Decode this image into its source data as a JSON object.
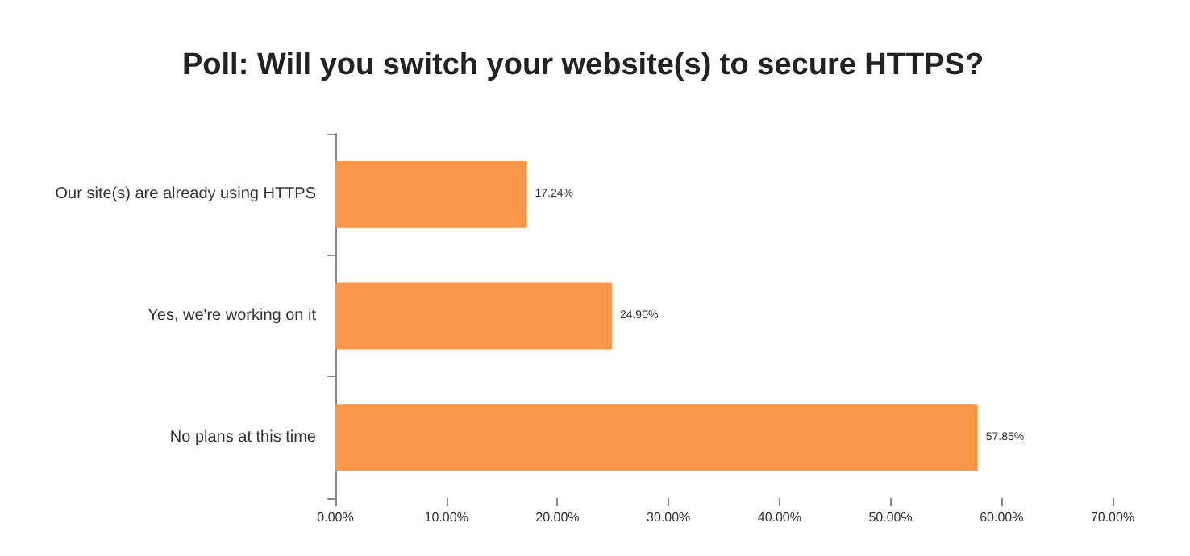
{
  "chart_data": {
    "type": "bar",
    "orientation": "horizontal",
    "title": "Poll: Will you switch your website(s) to secure HTTPS?",
    "categories": [
      "Our site(s) are already using HTTPS",
      "Yes, we're working on it",
      "No plans at this time"
    ],
    "values": [
      17.24,
      24.9,
      57.85
    ],
    "color": "#f79646",
    "value_labels": [
      "17.24%",
      "24.90%",
      "57.85%"
    ],
    "xlim": [
      0,
      70
    ],
    "xticks": [
      {
        "value": 0,
        "label": "0.00%"
      },
      {
        "value": 10,
        "label": "10.00%"
      },
      {
        "value": 20,
        "label": "20.00%"
      },
      {
        "value": 30,
        "label": "30.00%"
      },
      {
        "value": 40,
        "label": "40.00%"
      },
      {
        "value": 50,
        "label": "50.00%"
      },
      {
        "value": 60,
        "label": "60.00%"
      },
      {
        "value": 70,
        "label": "70.00%"
      }
    ],
    "grid": false
  }
}
